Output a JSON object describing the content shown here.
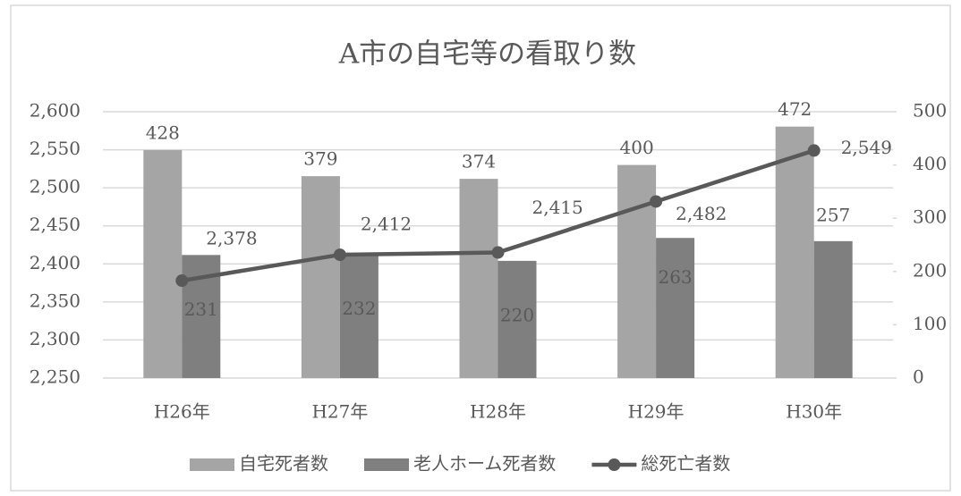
{
  "chart_data": {
    "type": "bar",
    "title": "A市の自宅等の看取り数",
    "categories": [
      "H26年",
      "H27年",
      "H28年",
      "H29年",
      "H30年"
    ],
    "series": [
      {
        "name": "自宅死者数",
        "type": "bar",
        "axis": "y2",
        "color": "#a5a5a5",
        "values": [
          428,
          379,
          374,
          400,
          472
        ]
      },
      {
        "name": "老人ホーム死者数",
        "type": "bar",
        "axis": "y2",
        "color": "#7f7f7f",
        "values": [
          231,
          232,
          220,
          263,
          257
        ]
      },
      {
        "name": "総死亡者数",
        "type": "line",
        "color": "#595959",
        "values": [
          2378,
          2412,
          2415,
          2482,
          2549
        ],
        "value_labels": [
          "2,378",
          "2,412",
          "2,415",
          "2,482",
          "2,549"
        ]
      }
    ],
    "ylim": [
      2250,
      2600
    ],
    "yticks": [
      {
        "value": 2250,
        "label": "2,250"
      },
      {
        "value": 2300,
        "label": "2,300"
      },
      {
        "value": 2350,
        "label": "2,350"
      },
      {
        "value": 2400,
        "label": "2,400"
      },
      {
        "value": 2450,
        "label": "2,450"
      },
      {
        "value": 2500,
        "label": "2,500"
      },
      {
        "value": 2550,
        "label": "2,550"
      },
      {
        "value": 2600,
        "label": "2,600"
      }
    ],
    "y2lim": [
      0,
      500
    ],
    "y2ticks": [
      0,
      100,
      200,
      300,
      400,
      500
    ],
    "grid": true,
    "legend": "bottom"
  }
}
